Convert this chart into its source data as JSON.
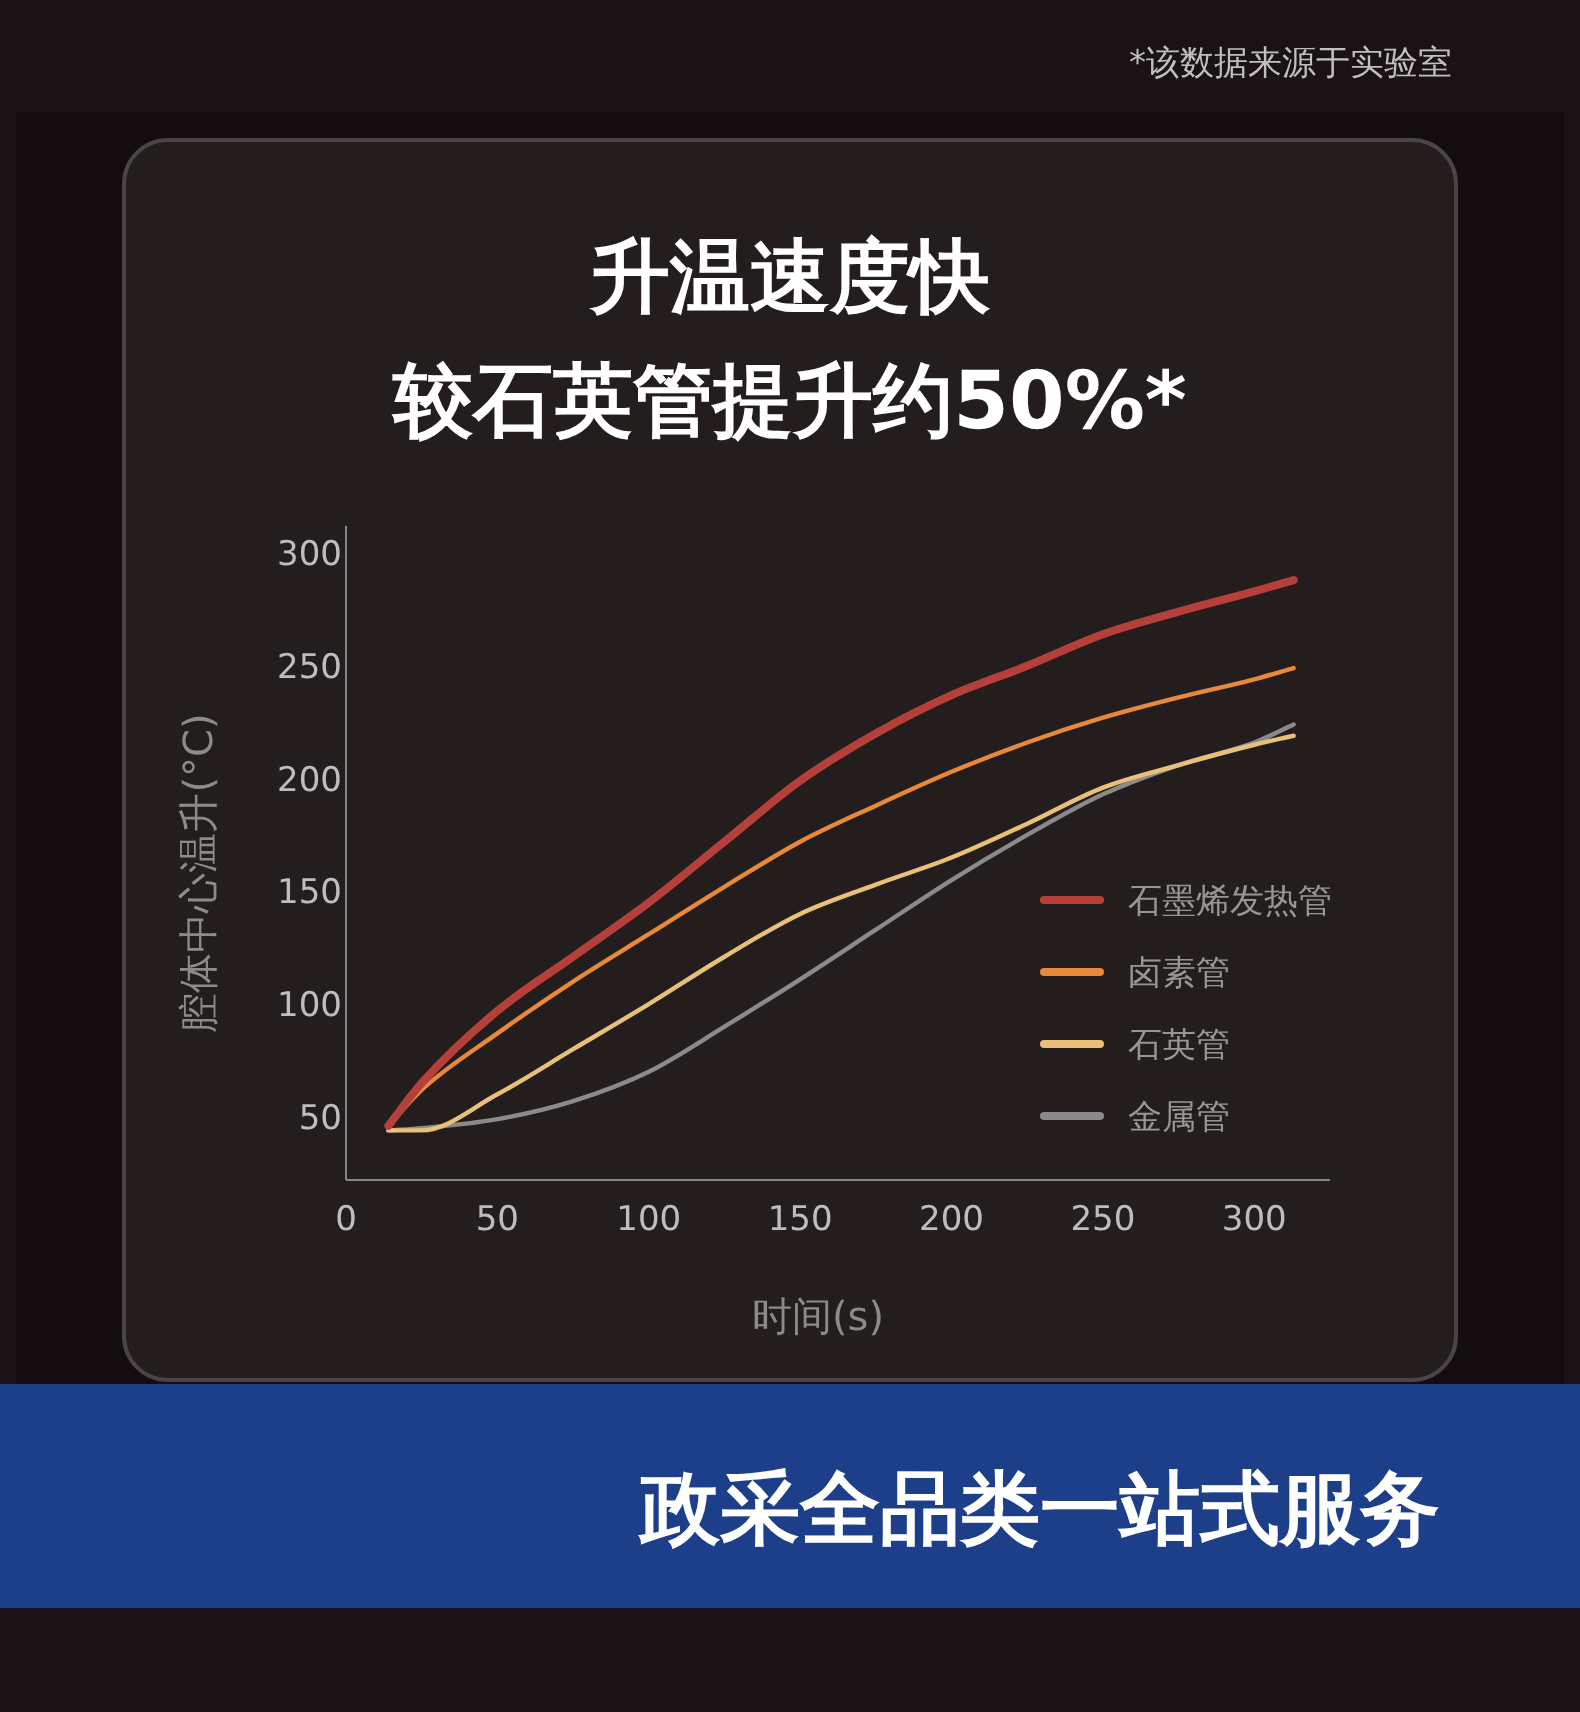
{
  "chart_data": {
    "type": "line",
    "title": "升温速度快",
    "subtitle": "较石英管提升约50%*",
    "xlabel": "时间(s)",
    "ylabel": "腔体中心温升(°C)",
    "x": [
      14,
      25,
      50,
      75,
      100,
      125,
      150,
      175,
      200,
      225,
      250,
      275,
      300,
      313
    ],
    "series": [
      {
        "name": "石墨烯发热管",
        "color": "#b5403a",
        "values": [
          46,
          65,
          97,
          121,
          145,
          172,
          199,
          220,
          237,
          250,
          264,
          274,
          283,
          288
        ]
      },
      {
        "name": "卤素管",
        "color": "#e8883a",
        "values": [
          46,
          62,
          87,
          110,
          131,
          152,
          172,
          188,
          203,
          216,
          227,
          236,
          244,
          249
        ]
      },
      {
        "name": "石英管",
        "color": "#e8c07a",
        "values": [
          44,
          44,
          60,
          80,
          100,
          121,
          140,
          153,
          165,
          180,
          196,
          206,
          215,
          219
        ]
      },
      {
        "name": "金属管",
        "color": "#8a8a8a",
        "values": [
          44,
          45,
          49,
          57,
          70,
          90,
          111,
          133,
          155,
          175,
          193,
          206,
          216,
          224
        ]
      }
    ],
    "xlim": [
      0,
      325
    ],
    "ylim": [
      22,
      312
    ],
    "xticks": [
      0,
      50,
      100,
      150,
      200,
      250,
      300
    ],
    "yticks": [
      50,
      100,
      150,
      200,
      250,
      300
    ],
    "grid": false,
    "legend": "right",
    "annotations": [
      "*该数据来源于实验室",
      "政采全品类一站式服务"
    ]
  }
}
